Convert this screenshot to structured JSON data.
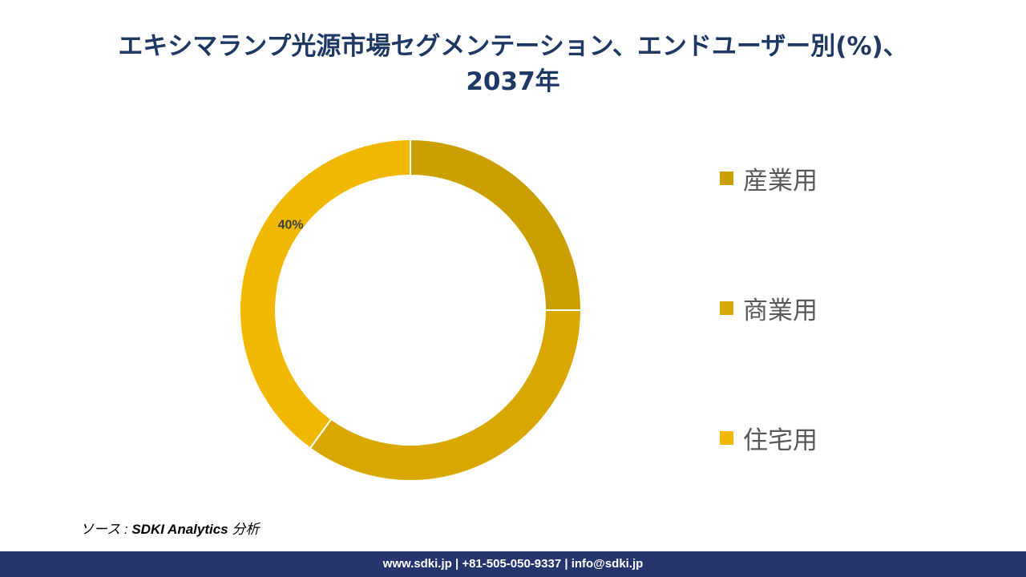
{
  "title": {
    "line1": "エキシマランプ光源市場セグメンテーション、エンドユーザー別(%)、",
    "line2": "2037年"
  },
  "chart_data": {
    "type": "pie",
    "hole": true,
    "categories": [
      "産業用",
      "商業用",
      "住宅用"
    ],
    "values": [
      25,
      35,
      40
    ],
    "colors": [
      "#c9a000",
      "#d8a800",
      "#f0b800"
    ],
    "data_labels": [
      "",
      "",
      "40%"
    ],
    "legend_position": "right"
  },
  "source": {
    "prefix": "ソース : ",
    "name": "SDKI Analytics",
    "suffix": " 分析"
  },
  "footer": {
    "text": "www.sdki.jp | +81-505-050-9337 | info@sdki.jp"
  }
}
